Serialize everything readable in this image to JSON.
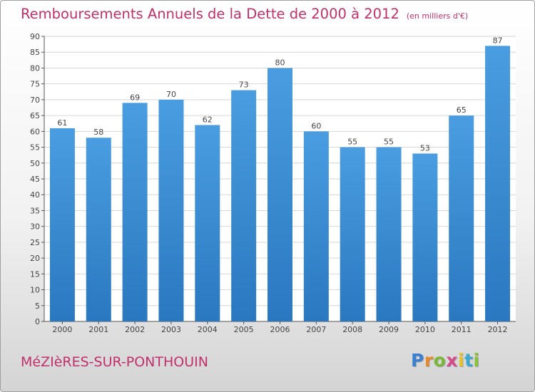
{
  "chart_data": {
    "type": "bar",
    "title": "Remboursements Annuels de la Dette de 2000 à 2012",
    "unit_note": "(en milliers d'€)",
    "categories": [
      "2000",
      "2001",
      "2002",
      "2003",
      "2004",
      "2005",
      "2006",
      "2007",
      "2008",
      "2009",
      "2010",
      "2011",
      "2012"
    ],
    "values": [
      61,
      58,
      69,
      70,
      62,
      73,
      80,
      60,
      55,
      55,
      53,
      65,
      87
    ],
    "ylim": [
      0,
      90
    ],
    "yticks": [
      "0",
      "5",
      "10",
      "15",
      "20",
      "25",
      "30",
      "35",
      "40",
      "45",
      "50",
      "55",
      "60",
      "65",
      "70",
      "75",
      "80",
      "85",
      "90"
    ],
    "grid": true,
    "bar_color": "#4a9de0",
    "bar_color_dark": "#2a78c0"
  },
  "footer": {
    "commune": "MéZIèRES-SUR-PONTHOUIN",
    "logo_letters": [
      "P",
      "r",
      "o",
      "x",
      "i",
      "t",
      "i"
    ],
    "logo_colors": [
      "#3a7fd0",
      "#e8892a",
      "#7ab83a",
      "#d64a8a",
      "#e8c22a",
      "#3aa8d0",
      "#8ac03a"
    ]
  }
}
